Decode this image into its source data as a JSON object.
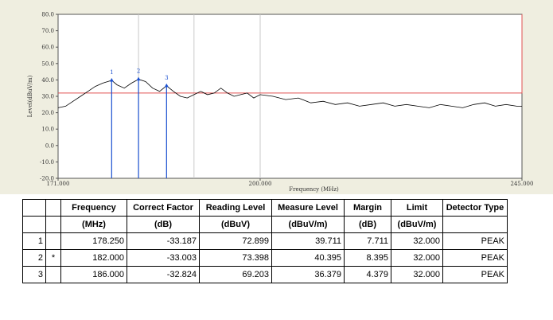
{
  "chart_data": {
    "type": "line",
    "xlabel": "Frequency (MHz)",
    "ylabel": "Level(dBuV/m)",
    "xlim": [
      171.0,
      245.0
    ],
    "ylim": [
      -20.0,
      80.0
    ],
    "x_scale": "log",
    "y_ticks": [
      "80.0",
      "70.0",
      "60.0",
      "50.0",
      "40.0",
      "30.0",
      "20.0",
      "10.0",
      "0.0",
      "-10.0",
      "-20.0"
    ],
    "x_ticks": [
      {
        "value": 171.0,
        "label": "171.000"
      },
      {
        "value": 200.0,
        "label": "200.000"
      },
      {
        "value": 245.0,
        "label": "245.000"
      }
    ],
    "vertical_gridlines": [
      182.0,
      190.0,
      200.0
    ],
    "limit_line": {
      "value": 32.0,
      "color": "#e05050"
    },
    "series": [
      {
        "color": "#000000",
        "x": [
          171.0,
          172.0,
          173.0,
          174.0,
          175.0,
          176.0,
          177.0,
          178.25,
          179.0,
          180.0,
          181.0,
          182.0,
          183.0,
          184.0,
          185.0,
          186.0,
          187.0,
          188.0,
          189.0,
          190.0,
          191.0,
          192.0,
          193.0,
          194.0,
          195.0,
          196.0,
          197.0,
          198.0,
          199.0,
          200.0,
          202.0,
          204.0,
          206.0,
          208.0,
          210.0,
          212.0,
          214.0,
          216.0,
          218.0,
          220.0,
          222.0,
          224.0,
          226.0,
          228.0,
          230.0,
          232.0,
          234.0,
          236.0,
          238.0,
          240.0,
          242.0,
          244.0,
          245.0
        ],
        "y": [
          23.0,
          24.0,
          27.0,
          30.0,
          33.0,
          36.0,
          38.0,
          39.7,
          37.0,
          35.0,
          38.0,
          40.4,
          39.0,
          35.0,
          33.0,
          36.4,
          33.0,
          30.0,
          29.0,
          31.0,
          33.0,
          31.0,
          32.0,
          35.0,
          32.0,
          30.0,
          31.0,
          32.0,
          29.0,
          31.0,
          30.0,
          28.0,
          29.0,
          26.0,
          27.0,
          25.0,
          26.0,
          24.0,
          25.0,
          26.0,
          24.0,
          25.0,
          24.0,
          23.0,
          25.0,
          24.0,
          23.0,
          25.0,
          26.0,
          24.0,
          25.0,
          24.0,
          24.0
        ]
      }
    ],
    "markers": [
      {
        "label": "1",
        "x": 178.25,
        "y": 39.7
      },
      {
        "label": "2",
        "x": 182.0,
        "y": 40.4
      },
      {
        "label": "3",
        "x": 186.0,
        "y": 36.4
      }
    ]
  },
  "table": {
    "header_row1": [
      "",
      "",
      "Frequency",
      "Correct Factor",
      "Reading Level",
      "Measure Level",
      "Margin",
      "Limit",
      "Detector Type"
    ],
    "header_row2": [
      "",
      "",
      "(MHz)",
      "(dB)",
      "(dBuV)",
      "(dBuV/m)",
      "(dB)",
      "(dBuV/m)",
      ""
    ],
    "rows": [
      {
        "no": "1",
        "mark": "",
        "frequency": "178.250",
        "correct_factor": "-33.187",
        "reading_level": "72.899",
        "measure_level": "39.711",
        "margin": "7.711",
        "limit": "32.000",
        "detector": "PEAK"
      },
      {
        "no": "2",
        "mark": "*",
        "frequency": "182.000",
        "correct_factor": "-33.003",
        "reading_level": "73.398",
        "measure_level": "40.395",
        "margin": "8.395",
        "limit": "32.000",
        "detector": "PEAK"
      },
      {
        "no": "3",
        "mark": "",
        "frequency": "186.000",
        "correct_factor": "-32.824",
        "reading_level": "69.203",
        "measure_level": "36.379",
        "margin": "4.379",
        "limit": "32.000",
        "detector": "PEAK"
      }
    ]
  }
}
